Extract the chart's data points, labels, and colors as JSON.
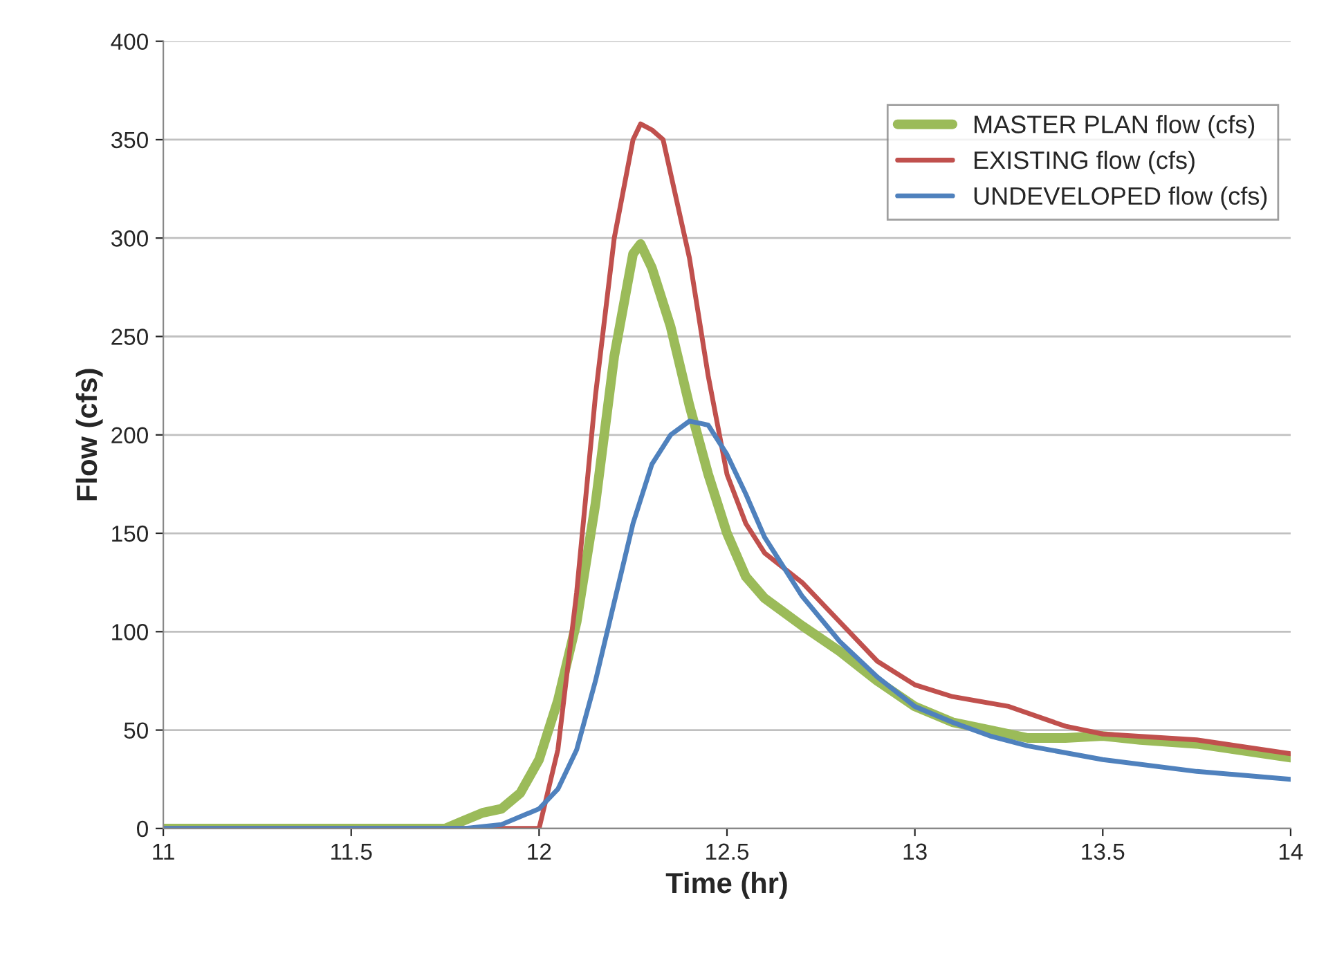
{
  "chart_data": {
    "type": "line",
    "xlabel": "Time (hr)",
    "ylabel": "Flow (cfs)",
    "xlim": [
      11,
      14
    ],
    "xticks": [
      11,
      11.5,
      12,
      12.5,
      13,
      13.5,
      14
    ],
    "ylim": [
      0,
      400
    ],
    "yticks": [
      0,
      50,
      100,
      150,
      200,
      250,
      300,
      350,
      400
    ],
    "grid": "y",
    "legend": "top right",
    "marker": "none",
    "line_style": "solid",
    "series": [
      {
        "name": "MASTER PLAN flow (cfs)",
        "color": "#9bbb59",
        "x": [
          11,
          11.75,
          11.8,
          11.85,
          11.9,
          11.95,
          12.0,
          12.05,
          12.1,
          12.15,
          12.2,
          12.25,
          12.27,
          12.3,
          12.35,
          12.4,
          12.45,
          12.5,
          12.55,
          12.6,
          12.7,
          12.8,
          12.9,
          13.0,
          13.1,
          13.2,
          13.3,
          13.4,
          13.5,
          13.6,
          13.75,
          14
        ],
        "values": [
          0,
          0,
          4,
          8,
          10,
          18,
          35,
          65,
          105,
          165,
          240,
          292,
          297,
          285,
          255,
          215,
          180,
          150,
          128,
          117,
          103,
          90,
          75,
          62,
          54,
          50,
          46,
          46,
          47,
          45,
          43,
          36
        ]
      },
      {
        "name": "EXISTING flow (cfs)",
        "color": "#c0504d",
        "x": [
          11,
          11.9,
          12.0,
          12.05,
          12.1,
          12.15,
          12.2,
          12.25,
          12.27,
          12.3,
          12.33,
          12.4,
          12.45,
          12.5,
          12.55,
          12.6,
          12.7,
          12.8,
          12.9,
          13.0,
          13.1,
          13.25,
          13.4,
          13.5,
          13.75,
          14
        ],
        "values": [
          0,
          0,
          0,
          40,
          120,
          220,
          300,
          350,
          358,
          355,
          350,
          290,
          230,
          180,
          155,
          140,
          125,
          105,
          85,
          73,
          67,
          62,
          52,
          48,
          45,
          38
        ]
      },
      {
        "name": "UNDEVELOPED flow (cfs)",
        "color": "#4f81bd",
        "x": [
          11,
          11.8,
          11.9,
          12.0,
          12.05,
          12.1,
          12.15,
          12.2,
          12.25,
          12.3,
          12.35,
          12.4,
          12.45,
          12.5,
          12.55,
          12.6,
          12.7,
          12.8,
          12.9,
          13.0,
          13.1,
          13.2,
          13.3,
          13.5,
          13.75,
          14
        ],
        "values": [
          0,
          0,
          2,
          10,
          20,
          40,
          75,
          115,
          155,
          185,
          200,
          207,
          205,
          190,
          170,
          148,
          118,
          95,
          77,
          62,
          54,
          47,
          42,
          35,
          29,
          25
        ]
      }
    ]
  }
}
